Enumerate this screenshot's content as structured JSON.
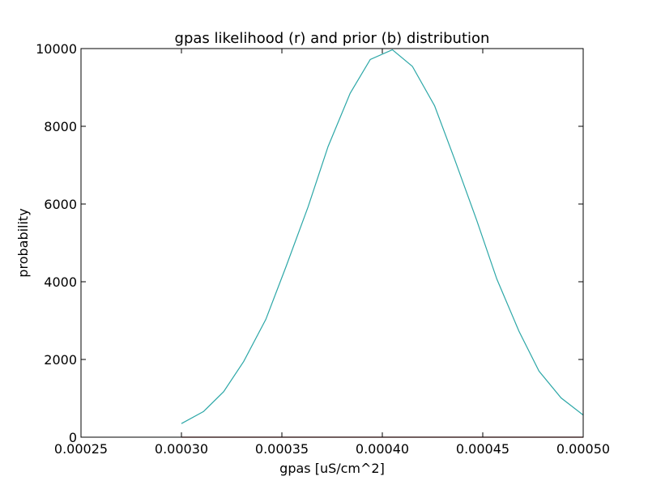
{
  "chart_data": {
    "type": "line",
    "title": "gpas likelihood (r) and prior (b) distribution",
    "xlabel": "gpas [uS/cm^2]",
    "ylabel": "probability",
    "xlim": [
      0.00025,
      0.0005
    ],
    "ylim": [
      0,
      10000
    ],
    "grid": false,
    "x_ticks": [
      {
        "value": 0.00025,
        "label": "0.00025"
      },
      {
        "value": 0.0003,
        "label": "0.00030"
      },
      {
        "value": 0.00035,
        "label": "0.00035"
      },
      {
        "value": 0.0004,
        "label": "0.00040"
      },
      {
        "value": 0.00045,
        "label": "0.00045"
      },
      {
        "value": 0.0005,
        "label": "0.00050"
      }
    ],
    "y_ticks": [
      {
        "value": 0,
        "label": "0"
      },
      {
        "value": 2000,
        "label": "2000"
      },
      {
        "value": 4000,
        "label": "4000"
      },
      {
        "value": 6000,
        "label": "6000"
      },
      {
        "value": 8000,
        "label": "8000"
      },
      {
        "value": 10000,
        "label": "10000"
      }
    ],
    "series": [
      {
        "color": "#2ca7a7",
        "x": [
          0.0003,
          0.000311,
          0.000321,
          0.000331,
          0.000342,
          0.000352,
          0.000363,
          0.000373,
          0.000384,
          0.000394,
          0.000405,
          0.000415,
          0.000426,
          0.000436,
          0.000447,
          0.000457,
          0.000468,
          0.000478,
          0.000489,
          0.0005
        ],
        "y": [
          350,
          660,
          1170,
          1950,
          3030,
          4380,
          5920,
          7480,
          8850,
          9720,
          9970,
          9540,
          8530,
          7150,
          5580,
          4070,
          2730,
          1700,
          1010,
          570
        ]
      },
      {
        "color": "#8b0000",
        "x": [
          0.0003,
          0.0005
        ],
        "y": [
          0,
          0
        ]
      }
    ]
  }
}
